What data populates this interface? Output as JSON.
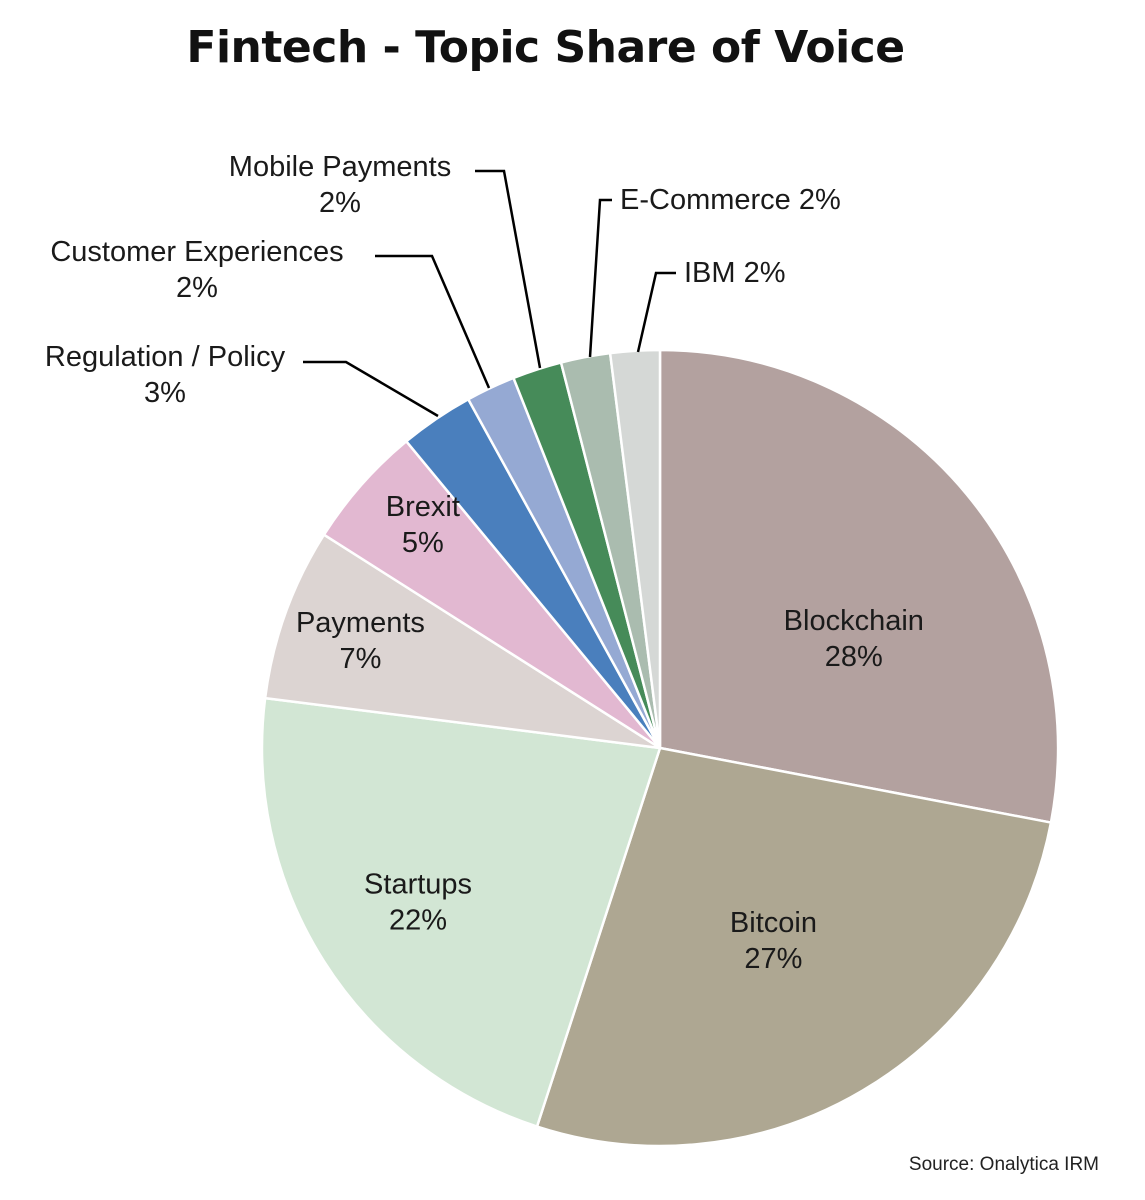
{
  "chart_data": {
    "type": "pie",
    "title": "Fintech - Topic Share of Voice",
    "source": "Source: Onalytica IRM",
    "slices": [
      {
        "name": "Blockchain",
        "value": 28,
        "value_label": "28%",
        "color": "#b3a19f"
      },
      {
        "name": "Bitcoin",
        "value": 27,
        "value_label": "27%",
        "color": "#aea792"
      },
      {
        "name": "Startups",
        "value": 22,
        "value_label": "22%",
        "color": "#d2e6d4"
      },
      {
        "name": "Payments",
        "value": 7,
        "value_label": "7%",
        "color": "#dcd4d2"
      },
      {
        "name": "Brexit",
        "value": 5,
        "value_label": "5%",
        "color": "#e2b8d1"
      },
      {
        "name": "Regulation / Policy",
        "value": 3,
        "value_label": "3%",
        "color": "#4a7fbd"
      },
      {
        "name": "Customer Experiences",
        "value": 2,
        "value_label": "2%",
        "color": "#95a9d3"
      },
      {
        "name": "Mobile Payments",
        "value": 2,
        "value_label": "2%",
        "color": "#468b59"
      },
      {
        "name": "E-Commerce",
        "value": 2,
        "value_label": "2%",
        "color": "#aabcaf"
      },
      {
        "name": "IBM",
        "value": 2,
        "value_label": "2%",
        "color": "#d5d8d6"
      }
    ]
  }
}
